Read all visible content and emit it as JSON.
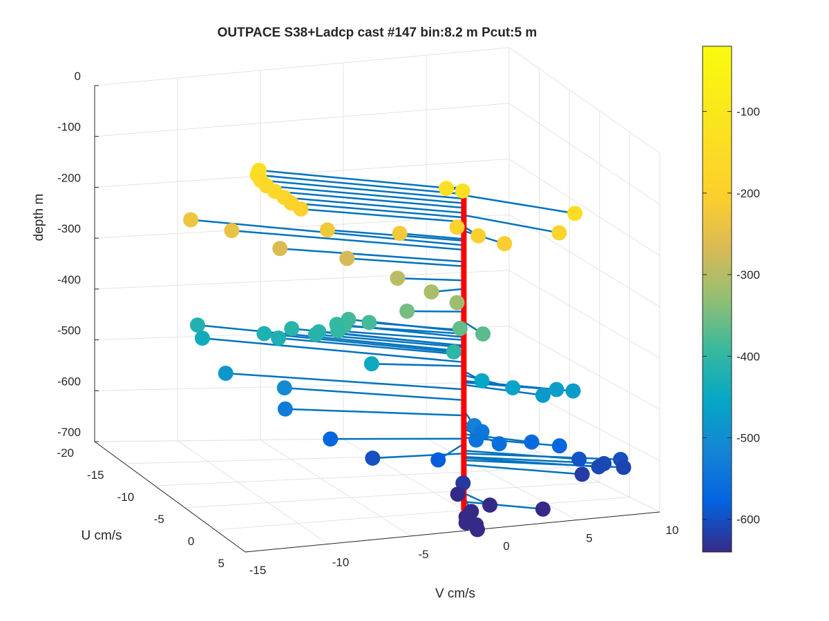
{
  "chart_data": {
    "type": "scatter3d",
    "title": "OUTPACE S38+Ladcp cast #147 bin:8.2 m  Pcut:5 m",
    "xlabel": "V cm/s",
    "ylabel": "U cm/s",
    "zlabel": "depth m",
    "xlim": [
      -15,
      10
    ],
    "ylim": [
      -20,
      5
    ],
    "zlim": [
      -700,
      0
    ],
    "x_ticks": [
      "-15",
      "-10",
      "-5",
      "0",
      "5",
      "10"
    ],
    "y_ticks": [
      "-20",
      "-15",
      "-10",
      "-5",
      "0",
      "5"
    ],
    "z_ticks": [
      "0",
      "-100",
      "-200",
      "-300",
      "-400",
      "-500",
      "-600",
      "-700"
    ],
    "grid": true,
    "colormap": "parula",
    "colorbar": {
      "range": [
        -640,
        -20
      ],
      "ticks": [
        "-100",
        "-200",
        "-300",
        "-400",
        "-500",
        "-600"
      ]
    },
    "colors": {
      "stick": "#0072bd",
      "cast_line": "#ff0000",
      "grid": "#e3e3e3",
      "axis": "#262626"
    },
    "points": [
      {
        "depth": -135,
        "v": -10.9,
        "u": -4.0
      },
      {
        "depth": -143,
        "v": -11.0,
        "u": -4.0
      },
      {
        "depth": -151,
        "v": -10.9,
        "u": -3.7
      },
      {
        "depth": -159,
        "v": -10.7,
        "u": -3.3
      },
      {
        "depth": -167,
        "v": -10.3,
        "u": -3.0
      },
      {
        "depth": -176,
        "v": -9.8,
        "u": -2.8
      },
      {
        "depth": -184,
        "v": -9.5,
        "u": -2.5
      },
      {
        "depth": -192,
        "v": -9.1,
        "u": -2.0
      },
      {
        "depth": -130,
        "v": -1.6,
        "u": 1.5
      },
      {
        "depth": -130,
        "v": -0.8,
        "u": 2.0
      },
      {
        "depth": -145,
        "v": 5.5,
        "u": 3.3
      },
      {
        "depth": -180,
        "v": 4.3,
        "u": 4.0
      },
      {
        "depth": -190,
        "v": -1.5,
        "u": 3.0
      },
      {
        "depth": -200,
        "v": -0.4,
        "u": 3.5
      },
      {
        "depth": -208,
        "v": 1.0,
        "u": 4.0
      },
      {
        "depth": -222,
        "v": -3.5,
        "u": -1.0
      },
      {
        "depth": -225,
        "v": -7.5,
        "u": -2.0
      },
      {
        "depth": -233,
        "v": -13.2,
        "u": -9.0
      },
      {
        "depth": -241,
        "v": -12.0,
        "u": -5.5
      },
      {
        "depth": -262,
        "v": -10.0,
        "u": -3.0
      },
      {
        "depth": -270,
        "v": -6.5,
        "u": -1.5
      },
      {
        "depth": -295,
        "v": -4.0,
        "u": 0.0
      },
      {
        "depth": -310,
        "v": -2.5,
        "u": 1.5
      },
      {
        "depth": -320,
        "v": -1.5,
        "u": 3.0
      },
      {
        "depth": -350,
        "v": -3.5,
        "u": 0.2
      },
      {
        "depth": -362,
        "v": -1.5,
        "u": 3.5
      },
      {
        "depth": -368,
        "v": -0.3,
        "u": 4.0
      },
      {
        "depth": -383,
        "v": -4.8,
        "u": -2.5
      },
      {
        "depth": -385,
        "v": -5.5,
        "u": -4.0
      },
      {
        "depth": -389,
        "v": -6.3,
        "u": -2.5
      },
      {
        "depth": -395,
        "v": -6.1,
        "u": -4.3
      },
      {
        "depth": -400,
        "v": -6.5,
        "u": -3.0
      },
      {
        "depth": -405,
        "v": -1.7,
        "u": 3.0
      },
      {
        "depth": -410,
        "v": -7.0,
        "u": -4.8
      },
      {
        "depth": -410,
        "v": -8.2,
        "u": -6.0
      },
      {
        "depth": -413,
        "v": -7.3,
        "u": -4.5
      },
      {
        "depth": -420,
        "v": -12.5,
        "u": -9.8
      },
      {
        "depth": -423,
        "v": -9.5,
        "u": -7.0
      },
      {
        "depth": -426,
        "v": -9.0,
        "u": -6.0
      },
      {
        "depth": -439,
        "v": -12.5,
        "u": -9.0
      },
      {
        "depth": -446,
        "v": -5.2,
        "u": -1.0
      },
      {
        "depth": -455,
        "v": 0.0,
        "u": 3.0
      },
      {
        "depth": -462,
        "v": 1.5,
        "u": 4.0
      },
      {
        "depth": -472,
        "v": 4.5,
        "u": 3.0
      },
      {
        "depth": -475,
        "v": 5.5,
        "u": 3.0
      },
      {
        "depth": -479,
        "v": 3.5,
        "u": 3.5
      },
      {
        "depth": -487,
        "v": -12.0,
        "u": -6.5
      },
      {
        "depth": -506,
        "v": -9.0,
        "u": -5.0
      },
      {
        "depth": -524,
        "v": -1.0,
        "u": 4.5
      },
      {
        "depth": -533,
        "v": -9.5,
        "u": -3.5
      },
      {
        "depth": -544,
        "v": 0.0,
        "u": 3.0
      },
      {
        "depth": -547,
        "v": -1.0,
        "u": 4.8
      },
      {
        "depth": -557,
        "v": 0.5,
        "u": 4.5
      },
      {
        "depth": -566,
        "v": 3.0,
        "u": 3.0
      },
      {
        "depth": -572,
        "v": 4.5,
        "u": 3.5
      },
      {
        "depth": -574,
        "v": -7.5,
        "u": -1.5
      },
      {
        "depth": -583,
        "v": -3.0,
        "u": 4.0
      },
      {
        "depth": -595,
        "v": 5.5,
        "u": 4.0
      },
      {
        "depth": -600,
        "v": 8.0,
        "u": 4.0
      },
      {
        "depth": -600,
        "v": -5.5,
        "u": 0.0
      },
      {
        "depth": -606,
        "v": 7.0,
        "u": 4.0
      },
      {
        "depth": -608,
        "v": 6.5,
        "u": 4.5
      },
      {
        "depth": -612,
        "v": 8.0,
        "u": 4.5
      },
      {
        "depth": -620,
        "v": 5.5,
        "u": 4.5
      },
      {
        "depth": -625,
        "v": -1.5,
        "u": 4.0
      },
      {
        "depth": -640,
        "v": -2.0,
        "u": 4.5
      },
      {
        "depth": -670,
        "v": 0.3,
        "u": 3.5
      },
      {
        "depth": -675,
        "v": -1.0,
        "u": 4.0
      },
      {
        "depth": -680,
        "v": -1.5,
        "u": 4.5
      },
      {
        "depth": -685,
        "v": 3.5,
        "u": 3.5
      },
      {
        "depth": -690,
        "v": -1.5,
        "u": 4.5
      },
      {
        "depth": -693,
        "v": -1.0,
        "u": 4.8
      },
      {
        "depth": -700,
        "v": -1.0,
        "u": 5.0
      }
    ]
  }
}
